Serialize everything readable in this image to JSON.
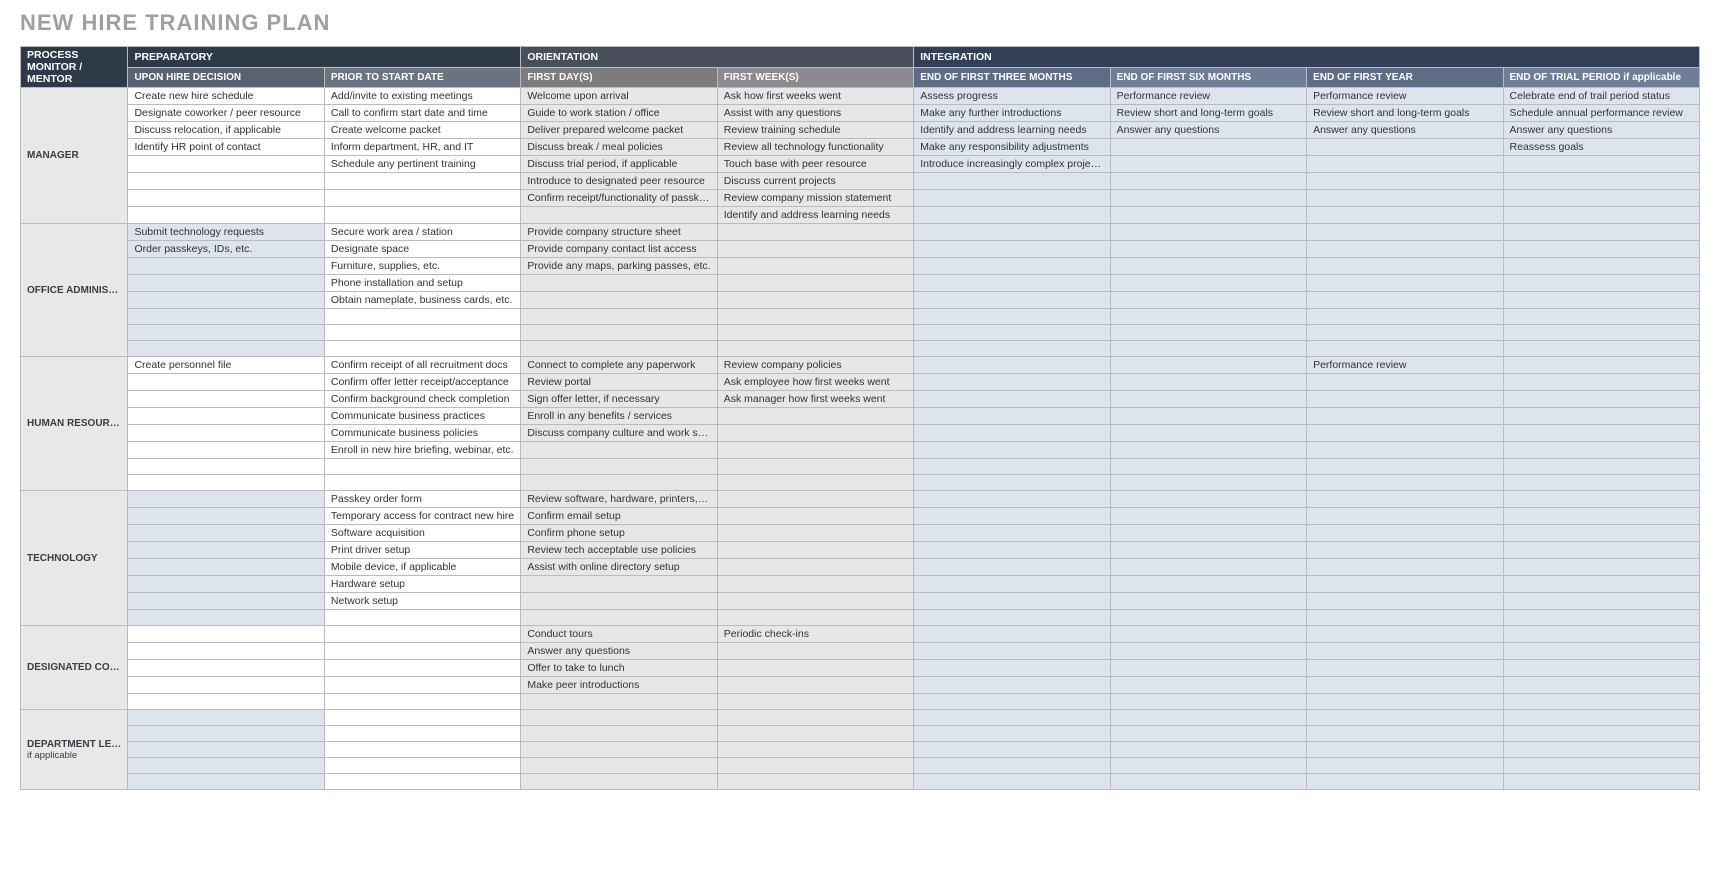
{
  "title": "NEW HIRE TRAINING PLAN",
  "header": {
    "corner_line1": "PROCESS",
    "corner_line2": "MONITOR /",
    "corner_line3": "MENTOR",
    "groups": [
      {
        "label": "PREPARATORY",
        "class": "dark"
      },
      {
        "label": "ORIENTATION",
        "class": "mid"
      },
      {
        "label": "INTEGRATION",
        "class": "navy"
      }
    ],
    "columns": [
      {
        "label": "UPON HIRE DECISION",
        "class": "dark"
      },
      {
        "label": "PRIOR TO START DATE",
        "class": "dark2"
      },
      {
        "label": "FIRST DAY(S)",
        "class": "mid"
      },
      {
        "label": "FIRST WEEK(S)",
        "class": "mid2"
      },
      {
        "label": "END OF FIRST THREE MONTHS",
        "class": "navy"
      },
      {
        "label": "END OF FIRST SIX MONTHS",
        "class": "navy2"
      },
      {
        "label": "END OF FIRST YEAR",
        "class": "navy"
      },
      {
        "label": "END OF TRIAL PERIOD if applicable",
        "class": "navy2"
      }
    ]
  },
  "column_colors_default": [
    "c-white",
    "c-white",
    "c-grey",
    "c-grey",
    "c-blue",
    "c-blue",
    "c-blue",
    "c-blue"
  ],
  "column_colors_alt": [
    "c-blue",
    "c-white",
    "c-grey",
    "c-grey",
    "c-blue",
    "c-blue",
    "c-blue",
    "c-blue"
  ],
  "sections": [
    {
      "role": "MANAGER",
      "color_scheme": "default",
      "rows": [
        [
          "Create new hire schedule",
          "Add/invite to existing meetings",
          "Welcome upon arrival",
          "Ask how first weeks went",
          "Assess progress",
          "Performance review",
          "Performance review",
          "Celebrate end of trail period status"
        ],
        [
          "Designate coworker / peer resource",
          "Call to confirm start date and time",
          "Guide to work station / office",
          "Assist with any questions",
          "Make any further introductions",
          "Review short and long-term goals",
          "Review short and long-term goals",
          "Schedule annual performance review"
        ],
        [
          "Discuss relocation, if applicable",
          "Create welcome packet",
          "Deliver prepared welcome packet",
          "Review training schedule",
          "Identify and address learning needs",
          "Answer any questions",
          "Answer any questions",
          "Answer any questions"
        ],
        [
          "Identify HR point of contact",
          "Inform department, HR, and IT",
          "Discuss break / meal policies",
          "Review all technology functionality",
          "Make any responsibility adjustments",
          "",
          "",
          "Reassess goals"
        ],
        [
          "",
          "Schedule any pertinent training",
          "Discuss trial period, if applicable",
          "Touch base with peer resource",
          "Introduce increasingly complex projects",
          "",
          "",
          ""
        ],
        [
          "",
          "",
          "Introduce to designated peer resource",
          "Discuss current projects",
          "",
          "",
          "",
          ""
        ],
        [
          "",
          "",
          "Confirm receipt/functionality of passkeys",
          "Review company mission statement",
          "",
          "",
          "",
          ""
        ],
        [
          "",
          "",
          "",
          "Identify and address learning needs",
          "",
          "",
          "",
          ""
        ]
      ]
    },
    {
      "role": "OFFICE ADMINISTRATOR",
      "color_scheme": "alt",
      "rows": [
        [
          "Submit technology requests",
          "Secure work area / station",
          "Provide company structure sheet",
          "",
          "",
          "",
          "",
          ""
        ],
        [
          "Order passkeys, IDs, etc.",
          "Designate space",
          "Provide company contact list access",
          "",
          "",
          "",
          "",
          ""
        ],
        [
          "",
          "Furniture, supplies, etc.",
          "Provide any maps, parking passes, etc.",
          "",
          "",
          "",
          "",
          ""
        ],
        [
          "",
          "Phone installation and setup",
          "",
          "",
          "",
          "",
          "",
          ""
        ],
        [
          "",
          "Obtain nameplate, business cards, etc.",
          "",
          "",
          "",
          "",
          "",
          ""
        ],
        [
          "",
          "",
          "",
          "",
          "",
          "",
          "",
          ""
        ],
        [
          "",
          "",
          "",
          "",
          "",
          "",
          "",
          ""
        ],
        [
          "",
          "",
          "",
          "",
          "",
          "",
          "",
          ""
        ]
      ]
    },
    {
      "role": "HUMAN RESOURCES",
      "color_scheme": "default",
      "rows": [
        [
          "Create personnel file",
          "Confirm receipt of all recruitment docs",
          "Connect to complete any paperwork",
          "Review company policies",
          "",
          "",
          "Performance review",
          ""
        ],
        [
          "",
          "Confirm offer letter receipt/acceptance",
          "Review portal",
          "Ask employee how first weeks went",
          "",
          "",
          "",
          ""
        ],
        [
          "",
          "Confirm background check completion",
          "Sign offer letter, if necessary",
          "Ask manager how first weeks went",
          "",
          "",
          "",
          ""
        ],
        [
          "",
          "Communicate business practices",
          "Enroll in any benefits / services",
          "",
          "",
          "",
          "",
          ""
        ],
        [
          "",
          "Communicate business policies",
          "Discuss company culture and work style",
          "",
          "",
          "",
          "",
          ""
        ],
        [
          "",
          "Enroll in new hire briefing, webinar, etc.",
          "",
          "",
          "",
          "",
          "",
          ""
        ],
        [
          "",
          "",
          "",
          "",
          "",
          "",
          "",
          ""
        ],
        [
          "",
          "",
          "",
          "",
          "",
          "",
          "",
          ""
        ]
      ]
    },
    {
      "role": "TECHNOLOGY",
      "color_scheme": "alt",
      "rows": [
        [
          "",
          "Passkey order form",
          "Review software, hardware, printers, etc.",
          "",
          "",
          "",
          "",
          ""
        ],
        [
          "",
          "Temporary access for contract new hire",
          "Confirm email setup",
          "",
          "",
          "",
          "",
          ""
        ],
        [
          "",
          "Software acquisition",
          "Confirm phone setup",
          "",
          "",
          "",
          "",
          ""
        ],
        [
          "",
          "Print driver setup",
          "Review tech acceptable use policies",
          "",
          "",
          "",
          "",
          ""
        ],
        [
          "",
          "Mobile device, if applicable",
          "Assist with online directory setup",
          "",
          "",
          "",
          "",
          ""
        ],
        [
          "",
          "Hardware setup",
          "",
          "",
          "",
          "",
          "",
          ""
        ],
        [
          "",
          "Network setup",
          "",
          "",
          "",
          "",
          "",
          ""
        ],
        [
          "",
          "",
          "",
          "",
          "",
          "",
          "",
          ""
        ]
      ]
    },
    {
      "role": "DESIGNATED COWORKER / PEER RESOURCE",
      "color_scheme": "default",
      "rows": [
        [
          "",
          "",
          "Conduct tours",
          "Periodic check-ins",
          "",
          "",
          "",
          ""
        ],
        [
          "",
          "",
          "Answer any questions",
          "",
          "",
          "",
          "",
          ""
        ],
        [
          "",
          "",
          "Offer to take to lunch",
          "",
          "",
          "",
          "",
          ""
        ],
        [
          "",
          "",
          "Make peer introductions",
          "",
          "",
          "",
          "",
          ""
        ],
        [
          "",
          "",
          "",
          "",
          "",
          "",
          "",
          ""
        ]
      ]
    },
    {
      "role": "DEPARTMENT LEAD",
      "role_sub": "if applicable",
      "color_scheme": "alt",
      "rows": [
        [
          "",
          "",
          "",
          "",
          "",
          "",
          "",
          ""
        ],
        [
          "",
          "",
          "",
          "",
          "",
          "",
          "",
          ""
        ],
        [
          "",
          "",
          "",
          "",
          "",
          "",
          "",
          ""
        ],
        [
          "",
          "",
          "",
          "",
          "",
          "",
          "",
          ""
        ],
        [
          "",
          "",
          "",
          "",
          "",
          "",
          "",
          ""
        ]
      ]
    }
  ]
}
